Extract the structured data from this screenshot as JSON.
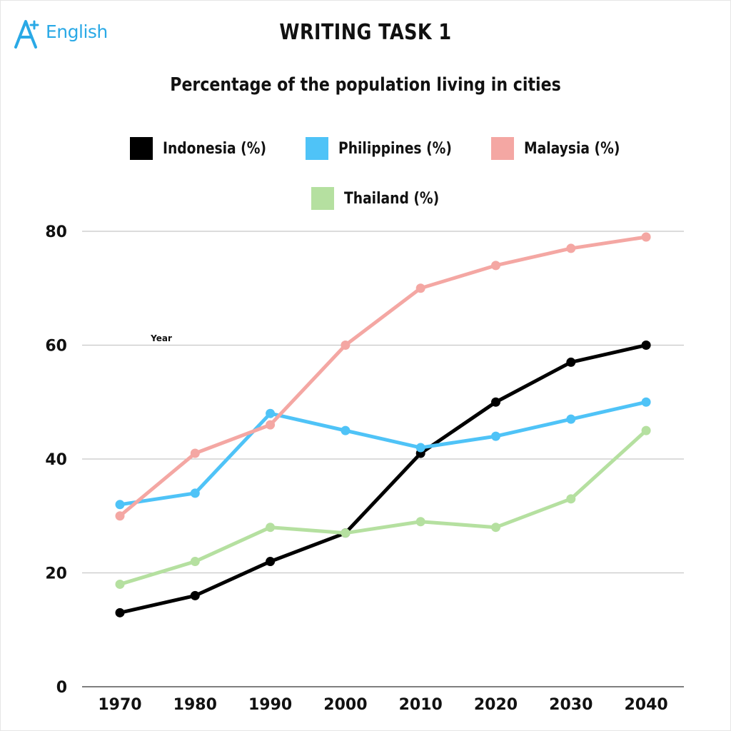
{
  "brand": {
    "logo_text": "English",
    "logo_mark": "A+"
  },
  "chart_data": {
    "type": "line",
    "title": "WRITING TASK 1",
    "subtitle": "Percentage of the population living in cities",
    "xlabel": "Year",
    "ylabel": "",
    "categories": [
      "1970",
      "1980",
      "1990",
      "2000",
      "2010",
      "2020",
      "2030",
      "2040"
    ],
    "yticks": [
      "0",
      "20",
      "40",
      "60",
      "80"
    ],
    "ylim": [
      0,
      80
    ],
    "grid": true,
    "legend_position": "top",
    "series": [
      {
        "name": "Indonesia (%)",
        "color": "#000000",
        "values": [
          13,
          16,
          22,
          27,
          41,
          50,
          57,
          60
        ]
      },
      {
        "name": "Philippines (%)",
        "color": "#4fc3f7",
        "values": [
          32,
          34,
          48,
          45,
          42,
          44,
          47,
          50
        ]
      },
      {
        "name": "Malaysia (%)",
        "color": "#f4a7a3",
        "values": [
          30,
          41,
          46,
          60,
          70,
          74,
          77,
          79
        ]
      },
      {
        "name": "Thailand (%)",
        "color": "#b5e0a0",
        "values": [
          18,
          22,
          28,
          27,
          29,
          28,
          33,
          45
        ]
      }
    ]
  }
}
